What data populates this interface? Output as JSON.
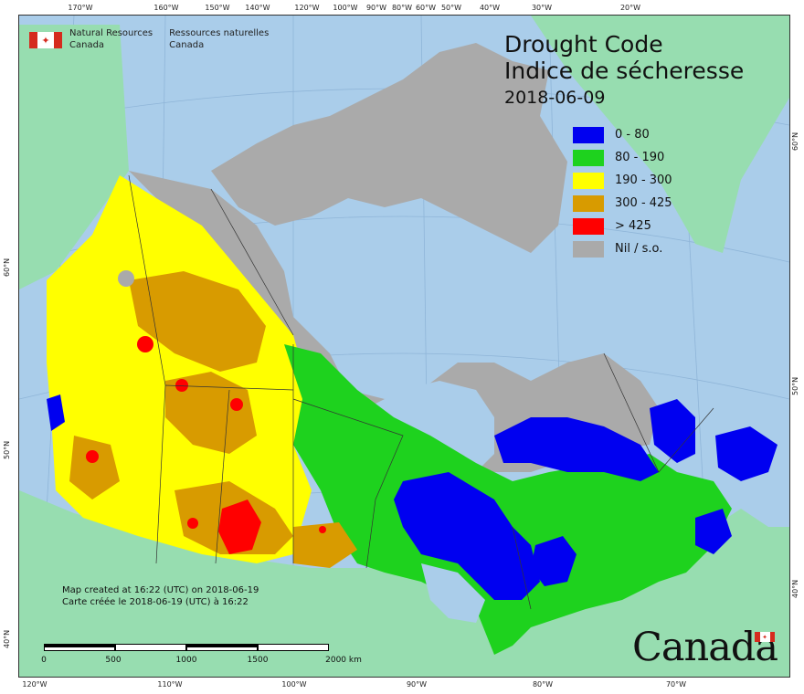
{
  "map": {
    "agency_en_line1": "Natural Resources",
    "agency_en_line2": "Canada",
    "agency_fr_line1": "Ressources naturelles",
    "agency_fr_line2": "Canada",
    "title_en": "Drought Code",
    "title_fr": "Indice de sécheresse",
    "date": "2018-06-09",
    "legend": [
      {
        "label": "0 - 80",
        "color": "#0000f0"
      },
      {
        "label": "80 - 190",
        "color": "#1ed21e"
      },
      {
        "label": "190 - 300",
        "color": "#ffff00"
      },
      {
        "label": "300 - 425",
        "color": "#d89b00"
      },
      {
        "label": "> 425",
        "color": "#ff0000"
      },
      {
        "label": "Nil / s.o.",
        "color": "#aaaaaa"
      }
    ],
    "credit_en": "Map created at 16:22 (UTC) on 2018-06-19",
    "credit_fr": "Carte créée le 2018-06-19 (UTC) à 16:22",
    "scale_labels": [
      "0",
      "500",
      "1000",
      "1500",
      "2000  km"
    ],
    "wordmark": "Canada",
    "flag_leaf": "✦",
    "top_ticks": [
      "170°W",
      "160°W",
      "150°W",
      "140°W",
      "120°W",
      "100°W",
      "90°W",
      "80°W",
      "60°W",
      "50°W",
      "40°W",
      "30°W",
      "20°W"
    ],
    "bottom_ticks": [
      "120°W",
      "110°W",
      "100°W",
      "90°W",
      "80°W",
      "70°W"
    ],
    "left_ticks": [
      "60°N",
      "50°N",
      "40°N"
    ],
    "right_ticks": [
      "60°N",
      "50°N",
      "40°N"
    ]
  }
}
